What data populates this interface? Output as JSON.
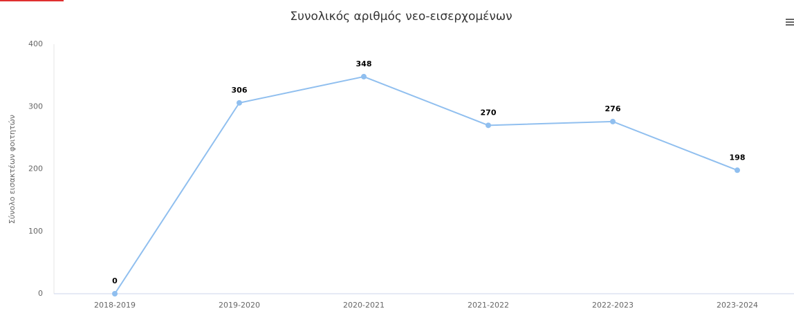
{
  "chart_data": {
    "type": "line",
    "title": "Συνολικός αριθμός νεο-εισερχομένων",
    "y_label": "Σύνολο εισακτέων φοιτητών",
    "categories": [
      "2018-2019",
      "2019-2020",
      "2020-2021",
      "2021-2022",
      "2022-2023",
      "2023-2024"
    ],
    "series": [
      {
        "name": "Σύνολο εισακτέων φοιτητών",
        "color": "#90bfef",
        "values": [
          0,
          306,
          348,
          270,
          276,
          198
        ]
      }
    ],
    "ylim": [
      0,
      400
    ],
    "yticks": [
      0,
      100,
      200,
      300,
      400
    ],
    "grid": false,
    "legend": false
  }
}
